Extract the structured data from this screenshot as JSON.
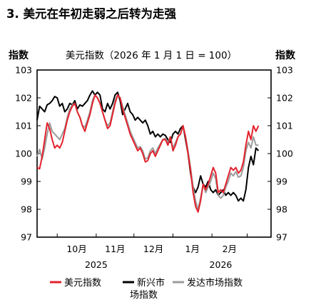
{
  "title": "3. 美元在年初走弱之后转为走强",
  "subtitle": "美元指数（2026 年 1 月 1 日 = 100）",
  "ylabel_left": "指数",
  "ylabel_right": "指数",
  "legend": {
    "usd": "美元指数",
    "em_line1": "新兴市",
    "em_line2": "场指数",
    "adv": "发达市场指数"
  },
  "colors": {
    "usd": "#e3222d",
    "em": "#000000",
    "adv": "#9c9c9c"
  },
  "chart_data": {
    "type": "line",
    "title": "美元指数（2026 年 1 月 1 日 = 100）",
    "ylabel": "指数",
    "ylim": [
      97,
      103
    ],
    "yticks": [
      97,
      98,
      99,
      100,
      101,
      102,
      103
    ],
    "xlim": [
      "2025-09-15",
      "2026-03-20"
    ],
    "month_ticks": [
      {
        "label": "10月",
        "date": "2025-10-01"
      },
      {
        "label": "11月",
        "date": "2025-11-01"
      },
      {
        "label": "12月",
        "date": "2025-12-01"
      },
      {
        "label": "1月",
        "date": "2026-01-01"
      },
      {
        "label": "2月",
        "date": "2026-02-01"
      }
    ],
    "year_labels": [
      {
        "label": "2025",
        "date": "2025-11-01"
      },
      {
        "label": "2026",
        "date": "2026-02-08"
      }
    ],
    "grid": false,
    "legend_position": "bottom",
    "series": [
      {
        "name": "美元指数",
        "points": [
          [
            "2025-09-15",
            99.5
          ],
          [
            "2025-09-17",
            99.45
          ],
          [
            "2025-09-19",
            99.9
          ],
          [
            "2025-09-21",
            100.5
          ],
          [
            "2025-09-23",
            101.1
          ],
          [
            "2025-09-25",
            100.9
          ],
          [
            "2025-09-27",
            100.5
          ],
          [
            "2025-09-29",
            100.2
          ],
          [
            "2025-10-01",
            100.3
          ],
          [
            "2025-10-03",
            100.2
          ],
          [
            "2025-10-05",
            100.4
          ],
          [
            "2025-10-07",
            100.8
          ],
          [
            "2025-10-09",
            101.2
          ],
          [
            "2025-10-11",
            101.5
          ],
          [
            "2025-10-13",
            101.7
          ],
          [
            "2025-10-15",
            101.8
          ],
          [
            "2025-10-17",
            101.5
          ],
          [
            "2025-10-19",
            101.3
          ],
          [
            "2025-10-21",
            101.0
          ],
          [
            "2025-10-23",
            100.8
          ],
          [
            "2025-10-25",
            101.1
          ],
          [
            "2025-10-27",
            101.4
          ],
          [
            "2025-10-29",
            101.8
          ],
          [
            "2025-10-31",
            102.1
          ],
          [
            "2025-11-02",
            102.0
          ],
          [
            "2025-11-04",
            101.8
          ],
          [
            "2025-11-06",
            101.5
          ],
          [
            "2025-11-08",
            101.2
          ],
          [
            "2025-11-10",
            100.9
          ],
          [
            "2025-11-12",
            101.0
          ],
          [
            "2025-11-14",
            101.4
          ],
          [
            "2025-11-16",
            101.8
          ],
          [
            "2025-11-18",
            102.1
          ],
          [
            "2025-11-20",
            102.0
          ],
          [
            "2025-11-22",
            101.6
          ],
          [
            "2025-11-24",
            101.3
          ],
          [
            "2025-11-26",
            101.0
          ],
          [
            "2025-11-28",
            100.7
          ],
          [
            "2025-11-30",
            100.5
          ],
          [
            "2025-12-02",
            100.3
          ],
          [
            "2025-12-04",
            100.1
          ],
          [
            "2025-12-06",
            100.2
          ],
          [
            "2025-12-08",
            100.0
          ],
          [
            "2025-12-10",
            99.7
          ],
          [
            "2025-12-12",
            99.75
          ],
          [
            "2025-12-14",
            100.0
          ],
          [
            "2025-12-16",
            100.1
          ],
          [
            "2025-12-18",
            99.9
          ],
          [
            "2025-12-20",
            100.1
          ],
          [
            "2025-12-22",
            100.3
          ],
          [
            "2025-12-24",
            100.5
          ],
          [
            "2025-12-26",
            100.5
          ],
          [
            "2025-12-28",
            100.3
          ],
          [
            "2025-12-30",
            100.6
          ],
          [
            "2026-01-01",
            100.1
          ],
          [
            "2026-01-03",
            100.3
          ],
          [
            "2026-01-05",
            100.6
          ],
          [
            "2026-01-07",
            100.7
          ],
          [
            "2026-01-09",
            101.0
          ],
          [
            "2026-01-11",
            100.6
          ],
          [
            "2026-01-13",
            100.0
          ],
          [
            "2026-01-15",
            99.4
          ],
          [
            "2026-01-17",
            98.6
          ],
          [
            "2026-01-19",
            98.1
          ],
          [
            "2026-01-21",
            97.9
          ],
          [
            "2026-01-23",
            98.3
          ],
          [
            "2026-01-25",
            98.9
          ],
          [
            "2026-01-27",
            98.7
          ],
          [
            "2026-01-29",
            98.9
          ],
          [
            "2026-01-31",
            99.2
          ],
          [
            "2026-02-02",
            99.5
          ],
          [
            "2026-02-04",
            99.3
          ],
          [
            "2026-02-06",
            98.6
          ],
          [
            "2026-02-08",
            98.7
          ],
          [
            "2026-02-10",
            98.6
          ],
          [
            "2026-02-12",
            98.9
          ],
          [
            "2026-02-14",
            99.2
          ],
          [
            "2026-02-16",
            99.5
          ],
          [
            "2026-02-18",
            99.4
          ],
          [
            "2026-02-20",
            99.5
          ],
          [
            "2026-02-22",
            99.3
          ],
          [
            "2026-02-24",
            99.4
          ],
          [
            "2026-02-26",
            99.7
          ],
          [
            "2026-02-28",
            100.3
          ],
          [
            "2026-03-02",
            100.8
          ],
          [
            "2026-03-04",
            100.5
          ],
          [
            "2026-03-06",
            101.0
          ],
          [
            "2026-03-08",
            100.8
          ],
          [
            "2026-03-10",
            101.0
          ]
        ]
      },
      {
        "name": "新兴市场指数",
        "points": [
          [
            "2025-09-15",
            101.2
          ],
          [
            "2025-09-17",
            101.7
          ],
          [
            "2025-09-19",
            101.6
          ],
          [
            "2025-09-21",
            101.5
          ],
          [
            "2025-09-23",
            101.75
          ],
          [
            "2025-09-25",
            101.8
          ],
          [
            "2025-09-27",
            101.9
          ],
          [
            "2025-09-29",
            102.05
          ],
          [
            "2025-10-01",
            102.0
          ],
          [
            "2025-10-03",
            101.7
          ],
          [
            "2025-10-05",
            101.8
          ],
          [
            "2025-10-07",
            101.5
          ],
          [
            "2025-10-09",
            101.6
          ],
          [
            "2025-10-11",
            101.8
          ],
          [
            "2025-10-13",
            101.75
          ],
          [
            "2025-10-15",
            101.9
          ],
          [
            "2025-10-17",
            101.6
          ],
          [
            "2025-10-19",
            101.75
          ],
          [
            "2025-10-21",
            101.7
          ],
          [
            "2025-10-23",
            101.8
          ],
          [
            "2025-10-25",
            101.9
          ],
          [
            "2025-10-27",
            102.1
          ],
          [
            "2025-10-29",
            102.25
          ],
          [
            "2025-10-31",
            102.1
          ],
          [
            "2025-11-02",
            102.2
          ],
          [
            "2025-11-04",
            102.1
          ],
          [
            "2025-11-06",
            101.6
          ],
          [
            "2025-11-08",
            101.5
          ],
          [
            "2025-11-10",
            101.8
          ],
          [
            "2025-11-12",
            101.6
          ],
          [
            "2025-11-14",
            101.8
          ],
          [
            "2025-11-16",
            102.1
          ],
          [
            "2025-11-18",
            102.2
          ],
          [
            "2025-11-20",
            101.9
          ],
          [
            "2025-11-22",
            101.4
          ],
          [
            "2025-11-24",
            101.6
          ],
          [
            "2025-11-26",
            101.8
          ],
          [
            "2025-11-28",
            101.5
          ],
          [
            "2025-11-30",
            101.4
          ],
          [
            "2025-12-02",
            101.2
          ],
          [
            "2025-12-04",
            101.3
          ],
          [
            "2025-12-06",
            101.2
          ],
          [
            "2025-12-08",
            101.1
          ],
          [
            "2025-12-10",
            101.2
          ],
          [
            "2025-12-12",
            101.0
          ],
          [
            "2025-12-14",
            100.7
          ],
          [
            "2025-12-16",
            100.8
          ],
          [
            "2025-12-18",
            100.6
          ],
          [
            "2025-12-20",
            100.7
          ],
          [
            "2025-12-22",
            100.6
          ],
          [
            "2025-12-24",
            100.7
          ],
          [
            "2025-12-26",
            100.65
          ],
          [
            "2025-12-28",
            100.5
          ],
          [
            "2025-12-30",
            100.4
          ],
          [
            "2026-01-01",
            100.7
          ],
          [
            "2026-01-03",
            100.8
          ],
          [
            "2026-01-05",
            100.7
          ],
          [
            "2026-01-07",
            100.9
          ],
          [
            "2026-01-09",
            101.0
          ],
          [
            "2026-01-11",
            100.5
          ],
          [
            "2026-01-13",
            100.0
          ],
          [
            "2026-01-15",
            99.3
          ],
          [
            "2026-01-17",
            98.8
          ],
          [
            "2026-01-19",
            98.6
          ],
          [
            "2026-01-21",
            98.8
          ],
          [
            "2026-01-23",
            99.2
          ],
          [
            "2026-01-25",
            98.9
          ],
          [
            "2026-01-27",
            98.8
          ],
          [
            "2026-01-29",
            99.0
          ],
          [
            "2026-01-31",
            98.7
          ],
          [
            "2026-02-02",
            98.6
          ],
          [
            "2026-02-04",
            98.7
          ],
          [
            "2026-02-06",
            98.5
          ],
          [
            "2026-02-08",
            98.6
          ],
          [
            "2026-02-10",
            98.7
          ],
          [
            "2026-02-12",
            98.5
          ],
          [
            "2026-02-14",
            98.6
          ],
          [
            "2026-02-16",
            98.5
          ],
          [
            "2026-02-18",
            98.6
          ],
          [
            "2026-02-20",
            98.5
          ],
          [
            "2026-02-22",
            98.3
          ],
          [
            "2026-02-24",
            98.4
          ],
          [
            "2026-02-26",
            98.3
          ],
          [
            "2026-02-28",
            98.7
          ],
          [
            "2026-03-02",
            99.5
          ],
          [
            "2026-03-04",
            99.9
          ],
          [
            "2026-03-06",
            99.6
          ],
          [
            "2026-03-08",
            100.2
          ],
          [
            "2026-03-10",
            100.1
          ]
        ]
      },
      {
        "name": "发达市场指数",
        "points": [
          [
            "2025-09-15",
            99.9
          ],
          [
            "2025-09-17",
            100.15
          ],
          [
            "2025-09-19",
            99.8
          ],
          [
            "2025-09-21",
            100.2
          ],
          [
            "2025-09-23",
            100.7
          ],
          [
            "2025-09-25",
            101.1
          ],
          [
            "2025-09-27",
            100.8
          ],
          [
            "2025-09-29",
            100.7
          ],
          [
            "2025-10-01",
            100.6
          ],
          [
            "2025-10-03",
            100.5
          ],
          [
            "2025-10-05",
            100.7
          ],
          [
            "2025-10-07",
            100.9
          ],
          [
            "2025-10-09",
            101.3
          ],
          [
            "2025-10-11",
            101.6
          ],
          [
            "2025-10-13",
            101.75
          ],
          [
            "2025-10-15",
            101.8
          ],
          [
            "2025-10-17",
            101.5
          ],
          [
            "2025-10-19",
            101.3
          ],
          [
            "2025-10-21",
            101.0
          ],
          [
            "2025-10-23",
            100.95
          ],
          [
            "2025-10-25",
            101.2
          ],
          [
            "2025-10-27",
            101.5
          ],
          [
            "2025-10-29",
            101.9
          ],
          [
            "2025-10-31",
            102.1
          ],
          [
            "2025-11-02",
            102.0
          ],
          [
            "2025-11-04",
            101.8
          ],
          [
            "2025-11-06",
            101.5
          ],
          [
            "2025-11-08",
            101.2
          ],
          [
            "2025-11-10",
            101.0
          ],
          [
            "2025-11-12",
            101.1
          ],
          [
            "2025-11-14",
            101.5
          ],
          [
            "2025-11-16",
            101.9
          ],
          [
            "2025-11-18",
            102.1
          ],
          [
            "2025-11-20",
            102.0
          ],
          [
            "2025-11-22",
            101.7
          ],
          [
            "2025-11-24",
            101.4
          ],
          [
            "2025-11-26",
            101.1
          ],
          [
            "2025-11-28",
            100.8
          ],
          [
            "2025-11-30",
            100.6
          ],
          [
            "2025-12-02",
            100.4
          ],
          [
            "2025-12-04",
            100.2
          ],
          [
            "2025-12-06",
            100.25
          ],
          [
            "2025-12-08",
            100.1
          ],
          [
            "2025-12-10",
            99.8
          ],
          [
            "2025-12-12",
            99.85
          ],
          [
            "2025-12-14",
            100.1
          ],
          [
            "2025-12-16",
            100.2
          ],
          [
            "2025-12-18",
            100.0
          ],
          [
            "2025-12-20",
            100.2
          ],
          [
            "2025-12-22",
            100.35
          ],
          [
            "2025-12-24",
            100.5
          ],
          [
            "2025-12-26",
            100.55
          ],
          [
            "2025-12-28",
            100.4
          ],
          [
            "2025-12-30",
            100.6
          ],
          [
            "2026-01-01",
            100.2
          ],
          [
            "2026-01-03",
            100.4
          ],
          [
            "2026-01-05",
            100.6
          ],
          [
            "2026-01-07",
            100.7
          ],
          [
            "2026-01-09",
            101.0
          ],
          [
            "2026-01-11",
            100.6
          ],
          [
            "2026-01-13",
            100.1
          ],
          [
            "2026-01-15",
            99.5
          ],
          [
            "2026-01-17",
            98.8
          ],
          [
            "2026-01-19",
            98.3
          ],
          [
            "2026-01-21",
            98.0
          ],
          [
            "2026-01-23",
            98.4
          ],
          [
            "2026-01-25",
            98.9
          ],
          [
            "2026-01-27",
            98.6
          ],
          [
            "2026-01-29",
            98.8
          ],
          [
            "2026-01-31",
            99.0
          ],
          [
            "2026-02-02",
            99.3
          ],
          [
            "2026-02-04",
            99.1
          ],
          [
            "2026-02-06",
            98.5
          ],
          [
            "2026-02-08",
            98.4
          ],
          [
            "2026-02-10",
            98.5
          ],
          [
            "2026-02-12",
            98.8
          ],
          [
            "2026-02-14",
            99.0
          ],
          [
            "2026-02-16",
            99.3
          ],
          [
            "2026-02-18",
            99.2
          ],
          [
            "2026-02-20",
            99.35
          ],
          [
            "2026-02-22",
            99.15
          ],
          [
            "2026-02-24",
            99.2
          ],
          [
            "2026-02-26",
            99.5
          ],
          [
            "2026-02-28",
            100.1
          ],
          [
            "2026-03-02",
            100.4
          ],
          [
            "2026-03-04",
            100.2
          ],
          [
            "2026-03-06",
            100.6
          ],
          [
            "2026-03-08",
            100.3
          ],
          [
            "2026-03-10",
            100.3
          ]
        ]
      }
    ]
  }
}
